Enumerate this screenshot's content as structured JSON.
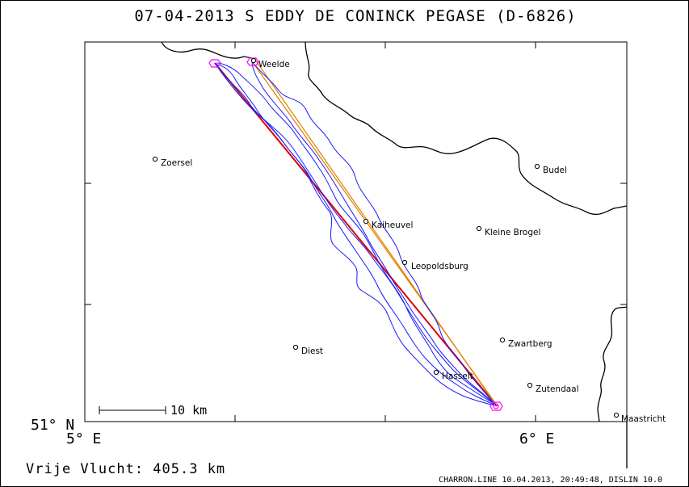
{
  "title": "07-04-2013   S EDDY DE CONINCK   PEGASE (D-6826)",
  "axes": {
    "lat_label": "51° N",
    "lon_labels": [
      "5° E",
      "6° E"
    ]
  },
  "towns": [
    {
      "name": "Weelde"
    },
    {
      "name": "Zoersel"
    },
    {
      "name": "Budel"
    },
    {
      "name": "Kaiheuvel"
    },
    {
      "name": "Kleine Brogel"
    },
    {
      "name": "Leopoldsburg"
    },
    {
      "name": "Diest"
    },
    {
      "name": "Zwartberg"
    },
    {
      "name": "Hasselt"
    },
    {
      "name": "Zutendaal"
    },
    {
      "name": "Maastricht"
    }
  ],
  "scale_bar": {
    "label": "10 km"
  },
  "flight_distance": "Vrije Vlucht:  405.3 km",
  "footer": "CHARRON.LINE 10.04.2013, 20:49:48, DISLIN 10.0",
  "colors": {
    "track": "#1a1aff",
    "task_red": "#e00000",
    "task_orange": "#e08000",
    "turnpoint": "#ff00ff",
    "border": "#000000"
  }
}
